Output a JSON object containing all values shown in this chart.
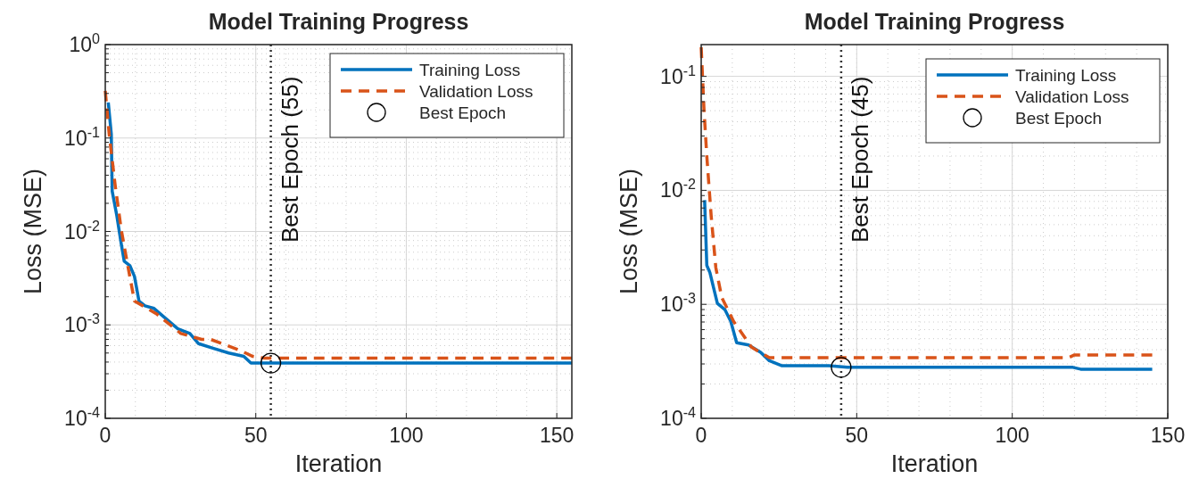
{
  "chart_data": [
    {
      "type": "line",
      "title": "Model Training Progress",
      "xlabel": "Iteration",
      "ylabel": "Loss (MSE)",
      "log": "y",
      "grid": true,
      "legend": "top right",
      "xlim": [
        0,
        155
      ],
      "xticks": [
        0,
        50,
        100,
        150
      ],
      "ylim": [
        0.0001,
        1
      ],
      "yticks": [
        {
          "value": 0.0001,
          "label": "10$^{-4}$"
        },
        {
          "value": 0.001,
          "label": "10$^{-3}$"
        },
        {
          "value": 0.01,
          "label": "10$^{-2}$"
        },
        {
          "value": 0.1,
          "label": "10$^{-1}$"
        },
        {
          "value": 1,
          "label": "10$^{0}$"
        }
      ],
      "ref_lines": [
        {
          "axis": "x",
          "value": 55,
          "label": "Best Epoch (55)",
          "color": "#333333",
          "line_style": "dotted"
        }
      ],
      "series": [
        {
          "name": "Training Loss",
          "color": "#0072bd",
          "line_style": "solid",
          "x": [
            1,
            2,
            2.3,
            3.8,
            5.3,
            6.3,
            8.2,
            9.7,
            11.2,
            13.2,
            16.2,
            20.1,
            24.1,
            28.1,
            31,
            36,
            41,
            46,
            48.4,
            55,
            155
          ],
          "values": [
            0.24,
            0.11,
            0.027,
            0.015,
            0.0074,
            0.0048,
            0.0043,
            0.0033,
            0.0018,
            0.0016,
            0.0015,
            0.00117,
            0.00091,
            0.00081,
            0.00063,
            0.00056,
            0.0005,
            0.00046,
            0.00039,
            0.00039,
            0.00039
          ]
        },
        {
          "name": "Validation Loss",
          "color": "#d95319",
          "line_style": "dashed",
          "x": [
            0,
            1.3,
            3.3,
            5.3,
            7.2,
            9.7,
            17.2,
            25.1,
            32,
            35,
            45,
            49,
            53,
            155
          ],
          "values": [
            0.32,
            0.11,
            0.031,
            0.0105,
            0.0048,
            0.0018,
            0.0013,
            0.00081,
            0.0007,
            0.0007,
            0.00053,
            0.00046,
            0.00044,
            0.00044
          ]
        },
        {
          "name": "Best Epoch",
          "type": "scatter",
          "marker": "circle",
          "color": "#000000",
          "x": [
            55
          ],
          "values": [
            0.00039
          ]
        }
      ]
    },
    {
      "type": "line",
      "title": "Model Training Progress",
      "xlabel": "Iteration",
      "ylabel": "Loss (MSE)",
      "log": "y",
      "grid": true,
      "legend": "top right",
      "xlim": [
        0,
        150
      ],
      "xticks": [
        0,
        50,
        100,
        150
      ],
      "ylim": [
        0.0001,
        0.19
      ],
      "yticks": [
        {
          "value": 0.0001,
          "label": "10$^{-4}$"
        },
        {
          "value": 0.001,
          "label": "10$^{-3}$"
        },
        {
          "value": 0.01,
          "label": "10$^{-2}$"
        },
        {
          "value": 0.1,
          "label": "10$^{-1}$"
        }
      ],
      "ref_lines": [
        {
          "axis": "x",
          "value": 45,
          "label": "Best Epoch (45)",
          "color": "#333333",
          "line_style": "dotted"
        }
      ],
      "series": [
        {
          "name": "Training Loss",
          "color": "#0072bd",
          "line_style": "solid",
          "x": [
            1.1,
            1.8,
            2.8,
            5.2,
            7.6,
            9.5,
            11.4,
            15.2,
            19.1,
            21.9,
            25.8,
            41,
            47,
            119.5,
            122,
            145
          ],
          "values": [
            0.0082,
            0.0022,
            0.0019,
            0.00102,
            0.0009,
            0.00071,
            0.00046,
            0.00044,
            0.00038,
            0.00032,
            0.00029,
            0.00029,
            0.00028,
            0.00028,
            0.00027,
            0.00027
          ]
        },
        {
          "name": "Validation Loss",
          "color": "#d95319",
          "line_style": "dashed",
          "x": [
            0,
            0.9,
            1.8,
            3.2,
            4.7,
            6.6,
            10.4,
            16.2,
            21.9,
            45,
            118,
            120,
            145
          ],
          "values": [
            0.18,
            0.051,
            0.02,
            0.006,
            0.0021,
            0.00115,
            0.00071,
            0.00042,
            0.00034,
            0.00034,
            0.00034,
            0.00036,
            0.00036
          ]
        },
        {
          "name": "Best Epoch",
          "type": "scatter",
          "marker": "circle",
          "color": "#000000",
          "x": [
            45
          ],
          "values": [
            0.00028
          ]
        }
      ]
    }
  ]
}
